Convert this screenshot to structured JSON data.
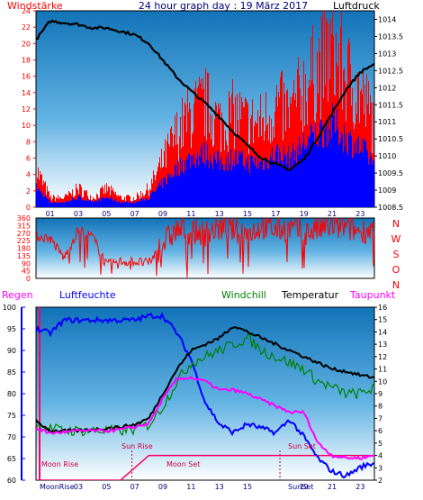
{
  "header": {
    "left": "Windstärke",
    "title": "24 hour graph day : 19 März 2017",
    "right": "Luftdruck"
  },
  "colors": {
    "wind": "#ff0000",
    "gust_base": "#0000ff",
    "pressure": "#000000",
    "direction": "#ff0000",
    "humidity": "#0000ff",
    "windchill": "#008000",
    "temperature": "#000000",
    "dewpoint": "#ff00ff",
    "rain": "#ff0066",
    "moon": "#cc0044",
    "sun": "#cc0044"
  },
  "x_ticks": [
    "01",
    "03",
    "05",
    "07",
    "09",
    "11",
    "13",
    "15",
    "17",
    "19",
    "21",
    "23"
  ],
  "dir_labels": [
    "N",
    "W",
    "S",
    "O",
    "N"
  ],
  "events": {
    "moon_rise": "Moon Rise",
    "moon_rise_short": "MoonRise",
    "sun_rise": "Sun Rise",
    "moon_set": "Moon Set",
    "sun_set": "Sun Set",
    "sun_set_short": "SunSet"
  },
  "chart_data": [
    {
      "type": "line",
      "title": "24 hour graph day : 19 März 2017",
      "ylabel_left": "Windstärke",
      "ylabel_right": "Luftdruck",
      "ylim_left": [
        0,
        24
      ],
      "yticks_left": [
        0,
        2,
        4,
        6,
        8,
        10,
        12,
        14,
        16,
        18,
        20,
        22,
        24
      ],
      "ylim_right": [
        1008.5,
        1014.25
      ],
      "yticks_right": [
        1008.5,
        1009,
        1009.5,
        1010,
        1010.5,
        1011,
        1011.5,
        1012,
        1012.5,
        1013,
        1013.5,
        1014
      ],
      "x_hours": [
        0,
        1,
        2,
        3,
        4,
        5,
        6,
        7,
        8,
        9,
        10,
        11,
        12,
        13,
        14,
        15,
        16,
        17,
        18,
        19,
        20,
        21,
        22,
        23,
        24
      ],
      "series": [
        {
          "name": "Windstärke",
          "axis": "left",
          "style": "bars",
          "values": [
            4,
            1,
            1,
            2,
            1,
            2,
            1,
            1,
            2,
            5,
            8,
            10,
            11,
            9,
            10,
            9,
            9,
            11,
            10,
            13,
            15,
            17,
            14,
            12,
            9
          ]
        },
        {
          "name": "Luftdruck",
          "axis": "right",
          "style": "line",
          "values": [
            1013.4,
            1013.95,
            1013.9,
            1013.85,
            1013.75,
            1013.75,
            1013.65,
            1013.55,
            1013.3,
            1012.8,
            1012.3,
            1011.9,
            1011.55,
            1011.15,
            1010.7,
            1010.3,
            1009.95,
            1009.75,
            1009.6,
            1009.9,
            1010.55,
            1011.25,
            1011.95,
            1012.45,
            1012.7
          ]
        }
      ]
    },
    {
      "type": "line",
      "ylim": [
        0,
        360
      ],
      "yticks": [
        0,
        45,
        90,
        135,
        180,
        225,
        270,
        315,
        360
      ],
      "x_hours": [
        0,
        1,
        2,
        3,
        4,
        5,
        6,
        7,
        8,
        9,
        10,
        11,
        12,
        13,
        14,
        15,
        16,
        17,
        18,
        19,
        20,
        21,
        22,
        23,
        24
      ],
      "series": [
        {
          "name": "Windrichtung",
          "values": [
            250,
            240,
            120,
            290,
            250,
            80,
            100,
            100,
            90,
            210,
            290,
            280,
            270,
            300,
            290,
            270,
            310,
            290,
            300,
            270,
            290,
            310,
            300,
            280,
            300
          ]
        }
      ]
    },
    {
      "type": "line",
      "ylabel_left": "Regen",
      "ylabel_left2": "Luftfeuchte",
      "ylabel_right": "Temperatur",
      "legend": [
        "Windchill",
        "Temperatur",
        "Taupunkt"
      ],
      "ylim_humidity": [
        60,
        100
      ],
      "yticks_humidity": [
        60,
        65,
        70,
        75,
        80,
        85,
        90,
        95,
        100
      ],
      "ylim_temp": [
        2,
        16
      ],
      "yticks_temp": [
        2,
        3,
        4,
        5,
        6,
        7,
        8,
        9,
        10,
        11,
        12,
        13,
        14,
        15,
        16
      ],
      "x_hours": [
        0,
        1,
        2,
        3,
        4,
        5,
        6,
        7,
        8,
        9,
        10,
        11,
        12,
        13,
        14,
        15,
        16,
        17,
        18,
        19,
        20,
        21,
        22,
        23,
        24
      ],
      "series": [
        {
          "name": "Luftfeuchte",
          "axis": "humidity",
          "values": [
            95,
            94,
            97,
            97,
            97,
            97,
            97,
            97,
            98,
            98,
            94,
            88,
            78,
            73,
            71,
            73,
            72,
            71,
            74,
            70,
            65,
            62,
            61,
            63,
            64
          ]
        },
        {
          "name": "Windchill",
          "axis": "temp",
          "values": [
            6.5,
            6.2,
            6.0,
            6.0,
            6.0,
            6.0,
            6.0,
            6.1,
            6.5,
            8.0,
            10.0,
            11.5,
            12.0,
            12.5,
            13.0,
            13.5,
            12.5,
            12.0,
            11.5,
            11.0,
            10.0,
            9.5,
            9.0,
            9.0,
            9.5
          ]
        },
        {
          "name": "Temperatur",
          "axis": "temp",
          "values": [
            6.8,
            6.0,
            6.0,
            6.0,
            6.1,
            6.2,
            6.3,
            6.5,
            7.0,
            9.0,
            11.0,
            12.5,
            13.0,
            13.5,
            14.5,
            14.0,
            13.5,
            13.0,
            12.5,
            12.0,
            11.5,
            11.0,
            10.8,
            10.5,
            10.3
          ]
        },
        {
          "name": "Taupunkt",
          "axis": "temp",
          "values": [
            6.2,
            5.8,
            5.9,
            6.0,
            6.0,
            6.0,
            6.1,
            6.3,
            6.6,
            8.6,
            10.2,
            10.3,
            10.0,
            9.3,
            9.3,
            9.0,
            8.5,
            8.0,
            7.5,
            7.5,
            5.0,
            4.0,
            3.8,
            3.8,
            4.0
          ]
        },
        {
          "name": "Regen",
          "axis": "temp",
          "values": [
            2.0,
            2.0,
            2.0,
            2.0,
            2.0,
            2.0,
            2.0,
            3.0,
            4.0,
            4.0,
            4.0,
            4.0,
            4.0,
            4.0,
            4.0,
            4.0,
            4.0,
            4.0,
            4.0,
            4.0,
            4.0,
            4.0,
            4.0,
            4.0,
            4.0
          ]
        }
      ]
    }
  ]
}
